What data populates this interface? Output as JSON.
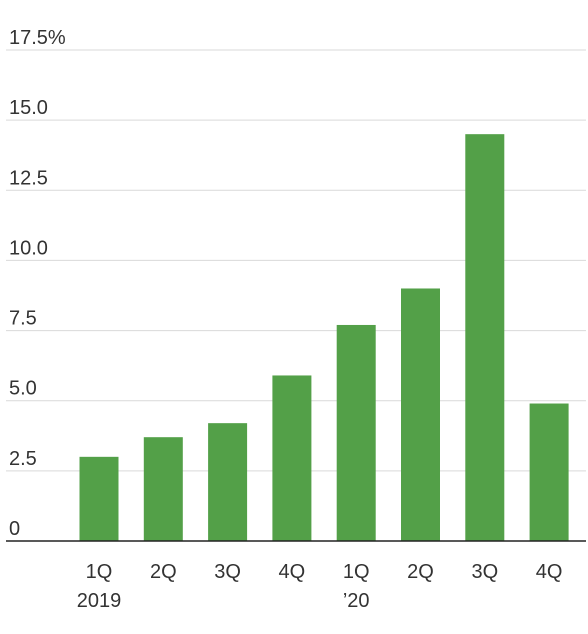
{
  "colors": {
    "bar": "#53a048",
    "grid": "#d9d9d9",
    "axis": "#222222",
    "text": "#333333"
  },
  "chart_data": {
    "type": "bar",
    "title": "",
    "xlabel": "",
    "ylabel": "",
    "ylim": [
      0,
      17.5
    ],
    "grid": true,
    "legend": "none",
    "y_ticks": [
      {
        "value": 0,
        "label": "0"
      },
      {
        "value": 2.5,
        "label": "2.5"
      },
      {
        "value": 5,
        "label": "5.0"
      },
      {
        "value": 7.5,
        "label": "7.5"
      },
      {
        "value": 10,
        "label": "10.0"
      },
      {
        "value": 12.5,
        "label": "12.5"
      },
      {
        "value": 15,
        "label": "15.0"
      },
      {
        "value": 17.5,
        "label": "17.5%"
      }
    ],
    "categories": [
      "1Q 2019",
      "2Q",
      "3Q",
      "4Q",
      "1Q '20",
      "2Q",
      "3Q",
      "4Q"
    ],
    "category_labels": [
      {
        "line1": "1Q",
        "line2": "2019"
      },
      {
        "line1": "2Q",
        "line2": ""
      },
      {
        "line1": "3Q",
        "line2": ""
      },
      {
        "line1": "4Q",
        "line2": ""
      },
      {
        "line1": "1Q",
        "line2": "’20"
      },
      {
        "line1": "2Q",
        "line2": ""
      },
      {
        "line1": "3Q",
        "line2": ""
      },
      {
        "line1": "4Q",
        "line2": ""
      }
    ],
    "values": [
      3.0,
      3.7,
      4.2,
      5.9,
      7.7,
      9.0,
      14.5,
      4.9
    ]
  }
}
